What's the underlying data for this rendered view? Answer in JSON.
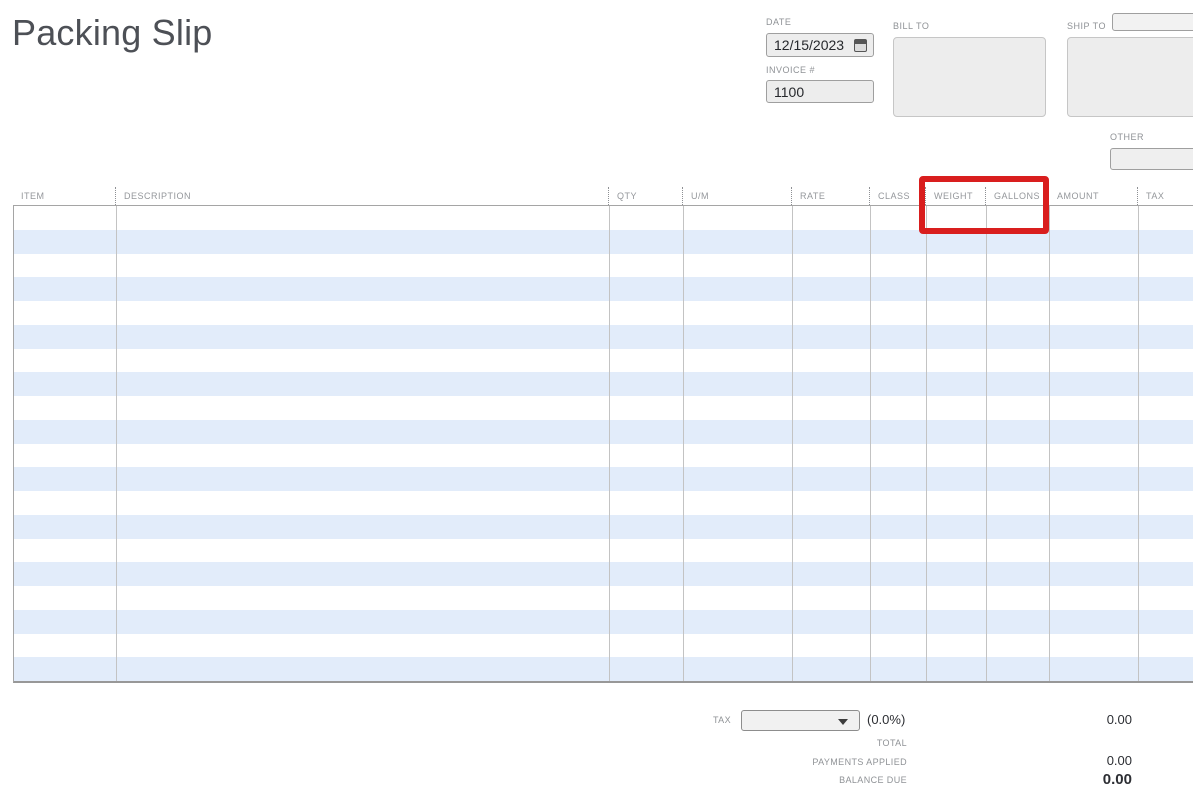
{
  "title": "Packing Slip",
  "header": {
    "date": {
      "label": "DATE",
      "value": "12/15/2023"
    },
    "invoice": {
      "label": "INVOICE #",
      "value": "1100"
    },
    "bill_to": {
      "label": "BILL TO",
      "value": ""
    },
    "ship_to": {
      "label": "SHIP TO",
      "value": "",
      "side_value": ""
    },
    "other": {
      "label": "OTHER",
      "value": ""
    }
  },
  "table": {
    "columns": [
      {
        "id": "item",
        "label": "ITEM"
      },
      {
        "id": "description",
        "label": "DESCRIPTION"
      },
      {
        "id": "qty",
        "label": "QTY"
      },
      {
        "id": "um",
        "label": "U/M"
      },
      {
        "id": "rate",
        "label": "RATE"
      },
      {
        "id": "class",
        "label": "CLASS"
      },
      {
        "id": "weight",
        "label": "WEIGHT"
      },
      {
        "id": "gallons",
        "label": "GALLONS"
      },
      {
        "id": "amount",
        "label": "AMOUNT"
      },
      {
        "id": "tax",
        "label": "TAX"
      }
    ],
    "rows": 20,
    "highlighted_columns": [
      "WEIGHT",
      "GALLONS"
    ]
  },
  "totals": {
    "tax": {
      "label": "TAX",
      "dropdown_value": "",
      "rate": "(0.0%)",
      "amount": "0.00"
    },
    "total": {
      "label": "TOTAL",
      "amount": ""
    },
    "payments": {
      "label": "PAYMENTS APPLIED",
      "amount": "0.00"
    },
    "balance": {
      "label": "BALANCE DUE",
      "amount": "0.00"
    }
  },
  "icons": {
    "calendar": "calendar-icon",
    "dropdown_arrow": "chevron-down-icon"
  },
  "colors": {
    "stripe_blue": "#e2ecfa",
    "highlight_red": "#d91e1e",
    "field_bg": "#ededed",
    "title_gray": "#4d5056"
  }
}
